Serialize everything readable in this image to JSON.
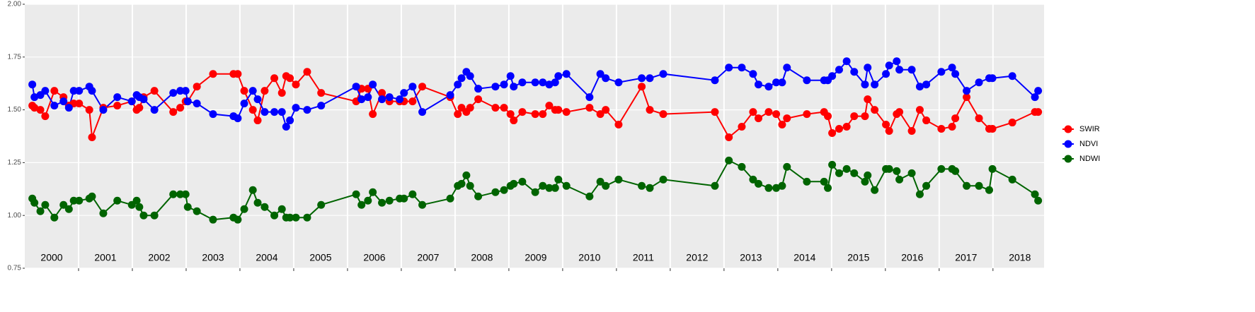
{
  "chart_data": {
    "type": "line",
    "x": [
      2000.14,
      2000.18,
      2000.29,
      2000.38,
      2000.55,
      2000.72,
      2000.82,
      2000.91,
      2001.01,
      2001.2,
      2001.25,
      2001.46,
      2001.72,
      2001.99,
      2002.08,
      2002.13,
      2002.21,
      2002.41,
      2002.76,
      2002.89,
      2002.99,
      2003.03,
      2003.2,
      2003.5,
      2003.88,
      2003.96,
      2004.08,
      2004.24,
      2004.33,
      2004.46,
      2004.64,
      2004.78,
      2004.86,
      2004.93,
      2005.04,
      2005.25,
      2005.51,
      2006.16,
      2006.26,
      2006.38,
      2006.47,
      2006.64,
      2006.78,
      2006.97,
      2007.05,
      2007.21,
      2007.39,
      2007.91,
      2008.05,
      2008.12,
      2008.21,
      2008.28,
      2008.43,
      2008.75,
      2008.91,
      2009.03,
      2009.09,
      2009.25,
      2009.49,
      2009.63,
      2009.75,
      2009.86,
      2009.92,
      2010.07,
      2010.5,
      2010.7,
      2010.8,
      2011.04,
      2011.47,
      2011.62,
      2011.87,
      2012.83,
      2013.09,
      2013.33,
      2013.54,
      2013.64,
      2013.83,
      2013.97,
      2014.08,
      2014.17,
      2014.54,
      2014.86,
      2014.93,
      2015.01,
      2015.14,
      2015.28,
      2015.42,
      2015.62,
      2015.67,
      2015.8,
      2016.01,
      2016.07,
      2016.21,
      2016.26,
      2016.49,
      2016.64,
      2016.76,
      2017.04,
      2017.24,
      2017.3,
      2017.51,
      2017.74,
      2017.93,
      2017.99,
      2018.36,
      2018.78,
      2018.84
    ],
    "series": [
      {
        "name": "SWIR",
        "color": "#ff0000",
        "values": [
          1.52,
          1.51,
          1.5,
          1.47,
          1.59,
          1.56,
          1.52,
          1.53,
          1.53,
          1.5,
          1.37,
          1.51,
          1.52,
          1.54,
          1.5,
          1.51,
          1.56,
          1.59,
          1.49,
          1.51,
          1.54,
          1.54,
          1.61,
          1.67,
          1.67,
          1.67,
          1.59,
          1.5,
          1.45,
          1.59,
          1.65,
          1.58,
          1.66,
          1.65,
          1.62,
          1.68,
          1.58,
          1.54,
          1.6,
          1.6,
          1.48,
          1.58,
          1.54,
          1.54,
          1.54,
          1.54,
          1.61,
          1.56,
          1.48,
          1.51,
          1.49,
          1.51,
          1.55,
          1.51,
          1.51,
          1.48,
          1.45,
          1.49,
          1.48,
          1.48,
          1.52,
          1.5,
          1.5,
          1.49,
          1.51,
          1.48,
          1.5,
          1.43,
          1.61,
          1.5,
          1.48,
          1.49,
          1.37,
          1.42,
          1.49,
          1.46,
          1.49,
          1.48,
          1.43,
          1.46,
          1.48,
          1.49,
          1.47,
          1.39,
          1.41,
          1.42,
          1.47,
          1.47,
          1.55,
          1.5,
          1.43,
          1.4,
          1.48,
          1.49,
          1.4,
          1.5,
          1.45,
          1.41,
          1.42,
          1.46,
          1.56,
          1.46,
          1.41,
          1.41,
          1.44,
          1.49,
          1.49
        ]
      },
      {
        "name": "NDVI",
        "color": "#0000ff",
        "values": [
          1.62,
          1.56,
          1.57,
          1.59,
          1.52,
          1.54,
          1.51,
          1.59,
          1.59,
          1.61,
          1.59,
          1.5,
          1.56,
          1.54,
          1.57,
          1.56,
          1.55,
          1.5,
          1.58,
          1.59,
          1.59,
          1.54,
          1.53,
          1.48,
          1.47,
          1.46,
          1.53,
          1.59,
          1.55,
          1.49,
          1.49,
          1.49,
          1.42,
          1.45,
          1.51,
          1.5,
          1.52,
          1.61,
          1.55,
          1.56,
          1.62,
          1.55,
          1.56,
          1.55,
          1.58,
          1.61,
          1.49,
          1.57,
          1.62,
          1.65,
          1.68,
          1.66,
          1.6,
          1.61,
          1.62,
          1.66,
          1.61,
          1.63,
          1.63,
          1.63,
          1.62,
          1.63,
          1.66,
          1.67,
          1.56,
          1.67,
          1.65,
          1.63,
          1.65,
          1.65,
          1.67,
          1.64,
          1.7,
          1.7,
          1.67,
          1.62,
          1.61,
          1.63,
          1.63,
          1.7,
          1.64,
          1.64,
          1.64,
          1.66,
          1.69,
          1.73,
          1.68,
          1.62,
          1.7,
          1.62,
          1.67,
          1.71,
          1.73,
          1.69,
          1.69,
          1.61,
          1.62,
          1.68,
          1.7,
          1.67,
          1.59,
          1.63,
          1.65,
          1.65,
          1.66,
          1.56,
          1.59
        ]
      },
      {
        "name": "NDWI",
        "color": "#006400",
        "values": [
          1.08,
          1.06,
          1.02,
          1.05,
          0.99,
          1.05,
          1.03,
          1.07,
          1.07,
          1.08,
          1.09,
          1.01,
          1.07,
          1.05,
          1.07,
          1.04,
          1.0,
          1.0,
          1.1,
          1.1,
          1.1,
          1.04,
          1.02,
          0.98,
          0.99,
          0.98,
          1.03,
          1.12,
          1.06,
          1.04,
          1.0,
          1.03,
          0.99,
          0.99,
          0.99,
          0.99,
          1.05,
          1.1,
          1.05,
          1.07,
          1.11,
          1.06,
          1.07,
          1.08,
          1.08,
          1.1,
          1.05,
          1.08,
          1.14,
          1.15,
          1.19,
          1.14,
          1.09,
          1.11,
          1.12,
          1.14,
          1.15,
          1.16,
          1.11,
          1.14,
          1.13,
          1.13,
          1.17,
          1.14,
          1.09,
          1.16,
          1.14,
          1.17,
          1.14,
          1.13,
          1.17,
          1.14,
          1.26,
          1.23,
          1.17,
          1.15,
          1.13,
          1.13,
          1.14,
          1.23,
          1.16,
          1.16,
          1.13,
          1.24,
          1.2,
          1.22,
          1.2,
          1.16,
          1.19,
          1.12,
          1.22,
          1.22,
          1.21,
          1.17,
          1.2,
          1.1,
          1.14,
          1.22,
          1.22,
          1.21,
          1.14,
          1.14,
          1.12,
          1.22,
          1.17,
          1.1,
          1.07
        ]
      }
    ],
    "xlim": [
      2000,
      2018.95
    ],
    "xticks": [
      {
        "value": 2000.5,
        "label": "2000"
      },
      {
        "value": 2001.5,
        "label": "2001"
      },
      {
        "value": 2002.5,
        "label": "2002"
      },
      {
        "value": 2003.5,
        "label": "2003"
      },
      {
        "value": 2004.5,
        "label": "2004"
      },
      {
        "value": 2005.5,
        "label": "2005"
      },
      {
        "value": 2006.5,
        "label": "2006"
      },
      {
        "value": 2007.5,
        "label": "2007"
      },
      {
        "value": 2008.5,
        "label": "2008"
      },
      {
        "value": 2009.5,
        "label": "2009"
      },
      {
        "value": 2010.5,
        "label": "2010"
      },
      {
        "value": 2011.5,
        "label": "2011"
      },
      {
        "value": 2012.5,
        "label": "2012"
      },
      {
        "value": 2013.5,
        "label": "2013"
      },
      {
        "value": 2014.5,
        "label": "2014"
      },
      {
        "value": 2015.5,
        "label": "2015"
      },
      {
        "value": 2016.5,
        "label": "2016"
      },
      {
        "value": 2017.5,
        "label": "2017"
      },
      {
        "value": 2018.5,
        "label": "2018"
      }
    ],
    "x_boundaries": [
      2001,
      2002,
      2003,
      2004,
      2005,
      2006,
      2007,
      2008,
      2009,
      2010,
      2011,
      2012,
      2013,
      2014,
      2015,
      2016,
      2017,
      2018
    ],
    "ylim": [
      0.75,
      2.0
    ],
    "yticks": [
      {
        "value": 0.75,
        "label": "0.75"
      },
      {
        "value": 1.0,
        "label": "1.00"
      },
      {
        "value": 1.25,
        "label": "1.25"
      },
      {
        "value": 1.5,
        "label": "1.50"
      },
      {
        "value": 1.75,
        "label": "1.75"
      },
      {
        "value": 2.0,
        "label": "2.00"
      }
    ],
    "grid": true,
    "legend": "right"
  }
}
